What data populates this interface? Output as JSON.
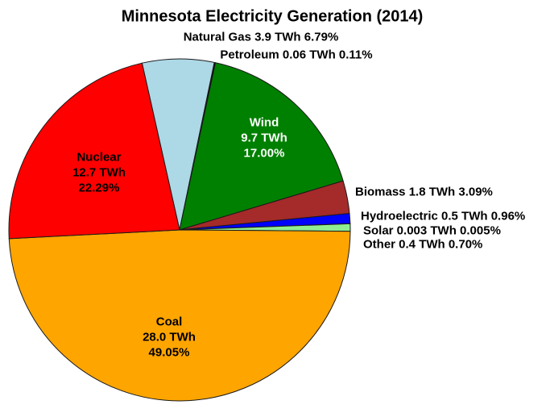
{
  "title": "Minnesota Electricity Generation (2014)",
  "chart_data": {
    "type": "pie",
    "title": "Minnesota Electricity Generation (2014)",
    "unit": "TWh",
    "start_angle_deg": 102.7,
    "direction": "clockwise",
    "legend_position": "none",
    "slices": [
      {
        "label": "Natural Gas",
        "value_twh": 3.9,
        "pct": 6.79,
        "color": "#ADD8E6",
        "label_style": "outside"
      },
      {
        "label": "Petroleum",
        "value_twh": 0.06,
        "pct": 0.11,
        "color": "#000000",
        "label_style": "outside"
      },
      {
        "label": "Wind",
        "value_twh": 9.7,
        "pct": 17.0,
        "color": "#008000",
        "label_style": "inside",
        "text_color": "#ffffff"
      },
      {
        "label": "Biomass",
        "value_twh": 1.8,
        "pct": 3.09,
        "color": "#A52A2A",
        "label_style": "outside"
      },
      {
        "label": "Hydroelectric",
        "value_twh": 0.5,
        "pct": 0.96,
        "color": "#0000FF",
        "label_style": "outside"
      },
      {
        "label": "Solar",
        "value_twh": 0.003,
        "pct": 0.005,
        "color": "#FFFF00",
        "label_style": "outside"
      },
      {
        "label": "Other",
        "value_twh": 0.4,
        "pct": 0.7,
        "color": "#90EE90",
        "label_style": "outside"
      },
      {
        "label": "Coal",
        "value_twh": 28.0,
        "pct": 49.05,
        "color": "#FFA500",
        "label_style": "inside",
        "text_color": "#000000"
      },
      {
        "label": "Nuclear",
        "value_twh": 12.7,
        "pct": 22.29,
        "color": "#FF0000",
        "label_style": "inside",
        "text_color": "#000000"
      }
    ]
  },
  "labels": {
    "natural_gas": "Natural Gas 3.9 TWh 6.79%",
    "petroleum": "Petroleum 0.06 TWh 0.11%",
    "biomass": "Biomass 1.8 TWh 3.09%",
    "hydroelectric": "Hydroelectric 0.5 TWh 0.96%",
    "solar": "Solar 0.003 TWh 0.005%",
    "other": "Other 0.4 TWh 0.70%",
    "wind_name": "Wind",
    "wind_value": "9.7 TWh",
    "wind_pct": "17.00%",
    "nuclear_name": "Nuclear",
    "nuclear_value": "12.7 TWh",
    "nuclear_pct": "22.29%",
    "coal_name": "Coal",
    "coal_value": "28.0 TWh",
    "coal_pct": "49.05%"
  },
  "style": {
    "wedge_edge_color": "#1a1a1a",
    "background": "#ffffff",
    "title_color": "#000000",
    "label_color": "#000000"
  }
}
